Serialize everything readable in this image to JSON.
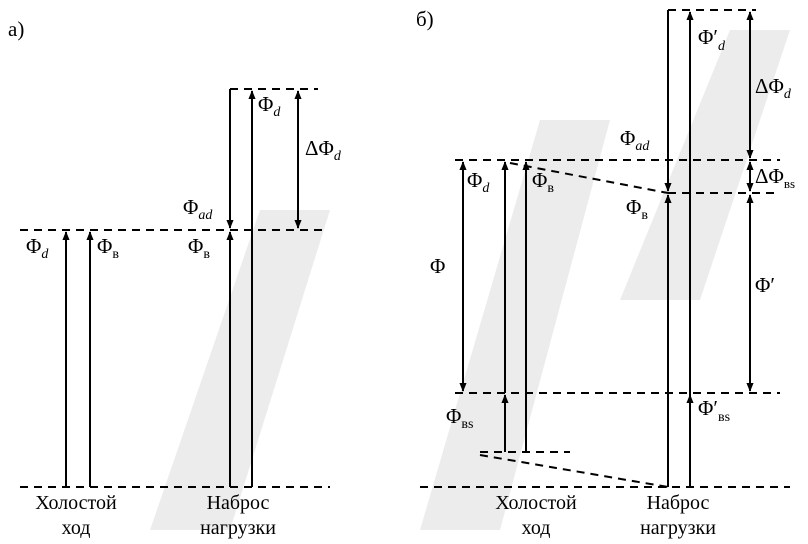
{
  "panel_a": {
    "tag": "а)",
    "labels": {
      "phi_d_left": "Φ",
      "phi_d_left_sub": "d",
      "phi_v_left": "Φ",
      "phi_v_left_sub": "в",
      "phi_d_top": "Φ",
      "phi_d_top_sub": "d",
      "delta_phi_d": "ΔΦ",
      "delta_phi_d_sub": "d",
      "phi_ad": "Φ",
      "phi_ad_sub": "ad",
      "phi_v_load": "Φ",
      "phi_v_load_sub": "в"
    },
    "captions": {
      "idle_line1": "Холостой",
      "idle_line2": "ход",
      "load_line1": "Наброс",
      "load_line2": "нагрузки"
    }
  },
  "panel_b": {
    "tag": "б)",
    "labels": {
      "phi_d_prime": "Φ′",
      "phi_d_prime_sub": "d",
      "delta_phi_d": "ΔΦ",
      "delta_phi_d_sub": "d",
      "phi_ad": "Φ",
      "phi_ad_sub": "ad",
      "delta_phi_vs": "ΔΦ",
      "delta_phi_vs_sub": "вs",
      "phi_d": "Φ",
      "phi_d_sub": "d",
      "phi_v": "Φ",
      "phi_v_sub": "в",
      "phi_v_load": "Φ",
      "phi_v_load_sub": "в",
      "phi": "Φ",
      "phi_prime": "Φ′",
      "phi_vs": "Φ",
      "phi_vs_sub": "вs",
      "phi_vs_prime": "Φ′",
      "phi_vs_prime_sub": "вs"
    },
    "captions": {
      "idle_line1": "Холостой",
      "idle_line2": "ход",
      "load_line1": "Наброс",
      "load_line2": "нагрузки"
    }
  }
}
